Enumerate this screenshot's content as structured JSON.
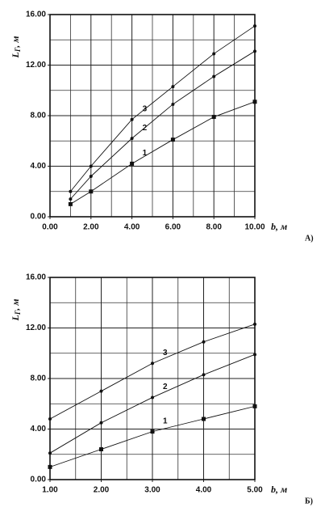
{
  "chart_data": [
    {
      "type": "line",
      "panel_label": "А)",
      "x_label": "b, м",
      "y_label": {
        "main": "L",
        "sub": "Г",
        "unit": ", м"
      },
      "xlim": [
        0,
        10
      ],
      "ylim": [
        0,
        16
      ],
      "xticks": [
        {
          "value": 0,
          "label": "0.00"
        },
        {
          "value": 2,
          "label": "2.00"
        },
        {
          "value": 4,
          "label": "4.00"
        },
        {
          "value": 6,
          "label": "6.00"
        },
        {
          "value": 8,
          "label": "8.00"
        },
        {
          "value": 10,
          "label": "10.00"
        }
      ],
      "yticks": [
        {
          "value": 0,
          "label": "0.00"
        },
        {
          "value": 4,
          "label": "4.00"
        },
        {
          "value": 8,
          "label": "8.00"
        },
        {
          "value": 12,
          "label": "12.00"
        },
        {
          "value": 16,
          "label": "16.00"
        }
      ],
      "x_gridlines": [
        1,
        3,
        5,
        7,
        9
      ],
      "y_gridlines": [
        2,
        6,
        10,
        14
      ],
      "color": "#111111",
      "series": [
        {
          "name": "1",
          "marker": "square",
          "x": [
            1,
            2,
            4,
            6,
            8,
            10
          ],
          "values": [
            1,
            2,
            4.2,
            6.1,
            7.9,
            9.1
          ]
        },
        {
          "name": "2",
          "marker": "circle",
          "x": [
            1,
            2,
            4,
            6,
            8,
            10
          ],
          "values": [
            1.4,
            3.2,
            6.2,
            8.9,
            11.1,
            13.1
          ]
        },
        {
          "name": "3",
          "marker": "circle",
          "x": [
            1,
            2,
            4,
            6,
            8,
            10
          ],
          "values": [
            2,
            4,
            7.7,
            10.3,
            12.9,
            15.1
          ]
        }
      ]
    },
    {
      "type": "line",
      "panel_label": "Б)",
      "x_label": "b, м",
      "y_label": {
        "main": "L",
        "sub": "Г",
        "unit": ", м"
      },
      "xlim": [
        1,
        5
      ],
      "ylim": [
        0,
        16
      ],
      "xticks": [
        {
          "value": 1,
          "label": "1.00"
        },
        {
          "value": 2,
          "label": "2.00"
        },
        {
          "value": 3,
          "label": "3.00"
        },
        {
          "value": 4,
          "label": "4.00"
        },
        {
          "value": 5,
          "label": "5.00"
        }
      ],
      "yticks": [
        {
          "value": 0,
          "label": "0.00"
        },
        {
          "value": 4,
          "label": "4.00"
        },
        {
          "value": 8,
          "label": "8.00"
        },
        {
          "value": 12,
          "label": "12.00"
        },
        {
          "value": 16,
          "label": "16.00"
        }
      ],
      "x_gridlines": [
        1.5,
        2.5,
        3.5,
        4.5
      ],
      "y_gridlines": [
        2,
        6,
        10,
        14
      ],
      "color": "#111111",
      "series": [
        {
          "name": "1",
          "marker": "square",
          "x": [
            1,
            2,
            3,
            4,
            5
          ],
          "values": [
            1,
            2.4,
            3.8,
            4.8,
            5.8
          ]
        },
        {
          "name": "2",
          "marker": "circle",
          "x": [
            1,
            2,
            3,
            4,
            5
          ],
          "values": [
            2.1,
            4.5,
            6.5,
            8.3,
            9.9
          ]
        },
        {
          "name": "3",
          "marker": "circle",
          "x": [
            1,
            2,
            3,
            4,
            5
          ],
          "values": [
            4.8,
            7,
            9.2,
            10.9,
            12.3
          ]
        }
      ]
    }
  ]
}
